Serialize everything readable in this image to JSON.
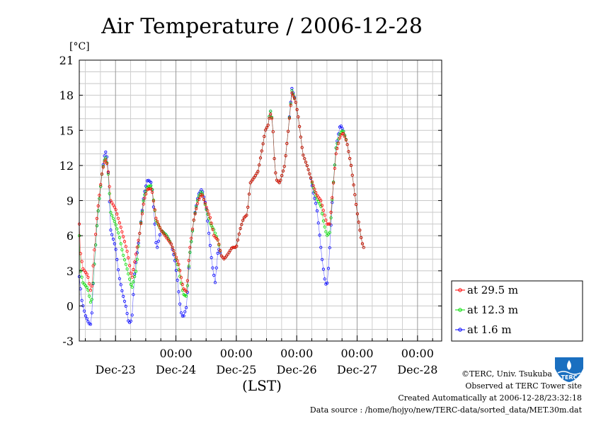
{
  "chart_data": {
    "type": "line",
    "title": "Air Temperature / 2006-12-28",
    "ylabel": "[°C]",
    "xlabel": "(LST)",
    "ylim": [
      -3,
      21
    ],
    "xlim": [
      -0.6,
      5.4
    ],
    "yticks": [
      -3,
      0,
      3,
      6,
      9,
      12,
      15,
      18,
      21
    ],
    "xticks": [
      {
        "pos": 1,
        "time": "00:00",
        "date": "Dec-24"
      },
      {
        "pos": 2,
        "time": "00:00",
        "date": "Dec-25"
      },
      {
        "pos": 3,
        "time": "00:00",
        "date": "Dec-26"
      },
      {
        "pos": 4,
        "time": "00:00",
        "date": "Dec-27"
      },
      {
        "pos": 5,
        "time": "00:00",
        "date": "Dec-28"
      }
    ],
    "first_date_label": {
      "pos": 0,
      "date": "Dec-23"
    },
    "legend_position": "right",
    "grid": true,
    "series": [
      {
        "name": "at 29.5 m",
        "color": "#ff0000",
        "knots": [
          [
            -0.6,
            7.0
          ],
          [
            -0.58,
            4.5
          ],
          [
            -0.54,
            3.2
          ],
          [
            -0.46,
            2.6
          ],
          [
            -0.4,
            1.0
          ],
          [
            -0.37,
            3.5
          ],
          [
            -0.3,
            8.0
          ],
          [
            -0.22,
            11.5
          ],
          [
            -0.17,
            12.6
          ],
          [
            -0.13,
            12.0
          ],
          [
            -0.08,
            9.0
          ],
          [
            0.0,
            8.3
          ],
          [
            0.1,
            6.5
          ],
          [
            0.15,
            5.5
          ],
          [
            0.2,
            4.5
          ],
          [
            0.27,
            2.3
          ],
          [
            0.34,
            4.5
          ],
          [
            0.4,
            6.2
          ],
          [
            0.47,
            9.0
          ],
          [
            0.53,
            10.0
          ],
          [
            0.6,
            10.0
          ],
          [
            0.67,
            7.5
          ],
          [
            0.75,
            6.5
          ],
          [
            0.85,
            5.8
          ],
          [
            0.92,
            5.3
          ],
          [
            0.98,
            4.5
          ],
          [
            1.05,
            3.5
          ],
          [
            1.12,
            1.5
          ],
          [
            1.18,
            1.2
          ],
          [
            1.22,
            4.5
          ],
          [
            1.3,
            7.5
          ],
          [
            1.37,
            9.0
          ],
          [
            1.43,
            9.6
          ],
          [
            1.5,
            8.5
          ],
          [
            1.57,
            7.5
          ],
          [
            1.63,
            6.0
          ],
          [
            1.7,
            5.6
          ],
          [
            1.75,
            4.3
          ],
          [
            1.8,
            4.0
          ],
          [
            1.87,
            4.5
          ],
          [
            1.93,
            5.0
          ],
          [
            2.0,
            5.0
          ],
          [
            2.06,
            6.5
          ],
          [
            2.12,
            7.5
          ],
          [
            2.18,
            7.8
          ],
          [
            2.23,
            10.5
          ],
          [
            2.3,
            11.0
          ],
          [
            2.36,
            11.5
          ],
          [
            2.43,
            13.5
          ],
          [
            2.48,
            15.0
          ],
          [
            2.53,
            15.5
          ],
          [
            2.56,
            16.5
          ],
          [
            2.6,
            15.8
          ],
          [
            2.63,
            12.5
          ],
          [
            2.66,
            10.8
          ],
          [
            2.72,
            10.5
          ],
          [
            2.8,
            12.0
          ],
          [
            2.86,
            15.0
          ],
          [
            2.92,
            18.2
          ],
          [
            2.98,
            17.5
          ],
          [
            3.03,
            16.0
          ],
          [
            3.1,
            13.0
          ],
          [
            3.17,
            12.0
          ],
          [
            3.23,
            11.0
          ],
          [
            3.28,
            10.2
          ],
          [
            3.33,
            9.5
          ],
          [
            3.4,
            9.0
          ],
          [
            3.45,
            8.0
          ],
          [
            3.5,
            7.0
          ],
          [
            3.55,
            7.0
          ],
          [
            3.6,
            10.0
          ],
          [
            3.65,
            13.0
          ],
          [
            3.72,
            14.5
          ],
          [
            3.77,
            14.8
          ],
          [
            3.83,
            14.0
          ],
          [
            3.9,
            12.0
          ],
          [
            3.95,
            10.0
          ],
          [
            4.0,
            8.0
          ],
          [
            4.06,
            6.0
          ],
          [
            4.1,
            5.0
          ]
        ]
      },
      {
        "name": "at 12.3 m",
        "color": "#00dd00",
        "knots": [
          [
            -0.6,
            6.0
          ],
          [
            -0.58,
            3.0
          ],
          [
            -0.54,
            2.0
          ],
          [
            -0.46,
            1.5
          ],
          [
            -0.4,
            0.0
          ],
          [
            -0.37,
            2.0
          ],
          [
            -0.3,
            7.5
          ],
          [
            -0.22,
            11.5
          ],
          [
            -0.17,
            12.8
          ],
          [
            -0.13,
            12.0
          ],
          [
            -0.08,
            8.0
          ],
          [
            0.0,
            7.0
          ],
          [
            0.06,
            6.0
          ],
          [
            0.12,
            4.5
          ],
          [
            0.2,
            3.0
          ],
          [
            0.27,
            1.5
          ],
          [
            0.34,
            3.0
          ],
          [
            0.4,
            6.2
          ],
          [
            0.47,
            9.3
          ],
          [
            0.53,
            10.2
          ],
          [
            0.6,
            10.3
          ],
          [
            0.67,
            7.3
          ],
          [
            0.75,
            6.5
          ],
          [
            0.85,
            6.0
          ],
          [
            0.92,
            5.3
          ],
          [
            0.98,
            4.5
          ],
          [
            1.05,
            3.0
          ],
          [
            1.12,
            1.0
          ],
          [
            1.18,
            0.8
          ],
          [
            1.22,
            4.0
          ],
          [
            1.3,
            7.5
          ],
          [
            1.37,
            9.3
          ],
          [
            1.43,
            9.8
          ],
          [
            1.5,
            8.3
          ],
          [
            1.57,
            7.0
          ],
          [
            1.63,
            6.5
          ],
          [
            1.7,
            5.5
          ],
          [
            1.75,
            4.3
          ],
          [
            1.8,
            4.0
          ],
          [
            1.87,
            4.5
          ],
          [
            1.93,
            5.0
          ],
          [
            2.0,
            5.0
          ],
          [
            2.06,
            6.5
          ],
          [
            2.12,
            7.5
          ],
          [
            2.18,
            7.8
          ],
          [
            2.23,
            10.5
          ],
          [
            2.3,
            11.0
          ],
          [
            2.36,
            11.5
          ],
          [
            2.43,
            13.5
          ],
          [
            2.48,
            15.0
          ],
          [
            2.53,
            15.5
          ],
          [
            2.56,
            16.8
          ],
          [
            2.6,
            15.8
          ],
          [
            2.63,
            12.5
          ],
          [
            2.66,
            10.8
          ],
          [
            2.72,
            10.5
          ],
          [
            2.8,
            12.0
          ],
          [
            2.86,
            15.0
          ],
          [
            2.92,
            18.4
          ],
          [
            2.98,
            17.5
          ],
          [
            3.03,
            16.0
          ],
          [
            3.1,
            13.0
          ],
          [
            3.17,
            12.0
          ],
          [
            3.23,
            11.0
          ],
          [
            3.28,
            10.0
          ],
          [
            3.33,
            9.2
          ],
          [
            3.4,
            8.5
          ],
          [
            3.45,
            7.0
          ],
          [
            3.5,
            6.0
          ],
          [
            3.55,
            6.3
          ],
          [
            3.6,
            10.0
          ],
          [
            3.65,
            13.5
          ],
          [
            3.72,
            14.8
          ],
          [
            3.77,
            15.0
          ],
          [
            3.83,
            14.0
          ],
          [
            3.9,
            12.0
          ],
          [
            3.95,
            10.0
          ],
          [
            4.0,
            8.0
          ],
          [
            4.06,
            6.0
          ],
          [
            4.1,
            5.0
          ]
        ]
      },
      {
        "name": "at 1.6 m",
        "color": "#0000ff",
        "knots": [
          [
            -0.6,
            2.5
          ],
          [
            -0.56,
            0.5
          ],
          [
            -0.5,
            -0.8
          ],
          [
            -0.44,
            -1.5
          ],
          [
            -0.4,
            -1.6
          ],
          [
            -0.37,
            2.0
          ],
          [
            -0.3,
            7.5
          ],
          [
            -0.22,
            11.5
          ],
          [
            -0.17,
            13.3
          ],
          [
            -0.13,
            12.5
          ],
          [
            -0.08,
            6.5
          ],
          [
            0.0,
            5.0
          ],
          [
            0.06,
            2.5
          ],
          [
            0.12,
            1.0
          ],
          [
            0.17,
            0.0
          ],
          [
            0.22,
            -1.5
          ],
          [
            0.27,
            -1.2
          ],
          [
            0.32,
            3.0
          ],
          [
            0.4,
            6.2
          ],
          [
            0.47,
            9.5
          ],
          [
            0.53,
            10.8
          ],
          [
            0.6,
            10.5
          ],
          [
            0.65,
            7.0
          ],
          [
            0.68,
            4.7
          ],
          [
            0.75,
            6.5
          ],
          [
            0.85,
            6.0
          ],
          [
            0.92,
            5.3
          ],
          [
            0.98,
            4.0
          ],
          [
            1.03,
            2.0
          ],
          [
            1.08,
            -0.5
          ],
          [
            1.12,
            -1.0
          ],
          [
            1.18,
            0.0
          ],
          [
            1.22,
            4.0
          ],
          [
            1.3,
            7.5
          ],
          [
            1.37,
            9.5
          ],
          [
            1.43,
            10.0
          ],
          [
            1.5,
            8.5
          ],
          [
            1.55,
            6.0
          ],
          [
            1.6,
            3.5
          ],
          [
            1.65,
            2.0
          ],
          [
            1.7,
            5.0
          ],
          [
            1.75,
            4.3
          ],
          [
            1.8,
            4.0
          ],
          [
            1.87,
            4.5
          ],
          [
            1.93,
            5.0
          ],
          [
            2.0,
            5.0
          ],
          [
            2.06,
            6.5
          ],
          [
            2.12,
            7.5
          ],
          [
            2.18,
            7.8
          ],
          [
            2.23,
            10.5
          ],
          [
            2.3,
            11.0
          ],
          [
            2.36,
            11.5
          ],
          [
            2.43,
            13.5
          ],
          [
            2.48,
            15.0
          ],
          [
            2.53,
            15.5
          ],
          [
            2.56,
            16.8
          ],
          [
            2.6,
            15.8
          ],
          [
            2.63,
            12.5
          ],
          [
            2.66,
            10.8
          ],
          [
            2.72,
            10.5
          ],
          [
            2.8,
            12.0
          ],
          [
            2.86,
            15.0
          ],
          [
            2.92,
            18.6
          ],
          [
            2.98,
            17.5
          ],
          [
            3.03,
            16.0
          ],
          [
            3.1,
            13.0
          ],
          [
            3.17,
            12.0
          ],
          [
            3.23,
            11.0
          ],
          [
            3.28,
            9.5
          ],
          [
            3.33,
            8.5
          ],
          [
            3.38,
            6.0
          ],
          [
            3.42,
            4.0
          ],
          [
            3.47,
            2.0
          ],
          [
            3.5,
            1.7
          ],
          [
            3.53,
            3.5
          ],
          [
            3.6,
            10.0
          ],
          [
            3.65,
            13.5
          ],
          [
            3.72,
            15.5
          ],
          [
            3.77,
            15.0
          ],
          [
            3.83,
            14.0
          ],
          [
            3.9,
            12.0
          ],
          [
            3.95,
            10.0
          ],
          [
            4.0,
            8.0
          ],
          [
            4.06,
            6.0
          ],
          [
            4.1,
            5.0
          ]
        ]
      }
    ]
  },
  "footer": {
    "credit": "©TERC, Univ. Tsukuba",
    "site": "Observed at TERC Tower site",
    "created": "Created Automatically at 2006-12-28/23:32:18",
    "source": "Data source : /home/hojyo/new/TERC-data/sorted_data/MET.30m.dat"
  },
  "logo": {
    "text": "TERC",
    "color": "#1a6fc0"
  }
}
